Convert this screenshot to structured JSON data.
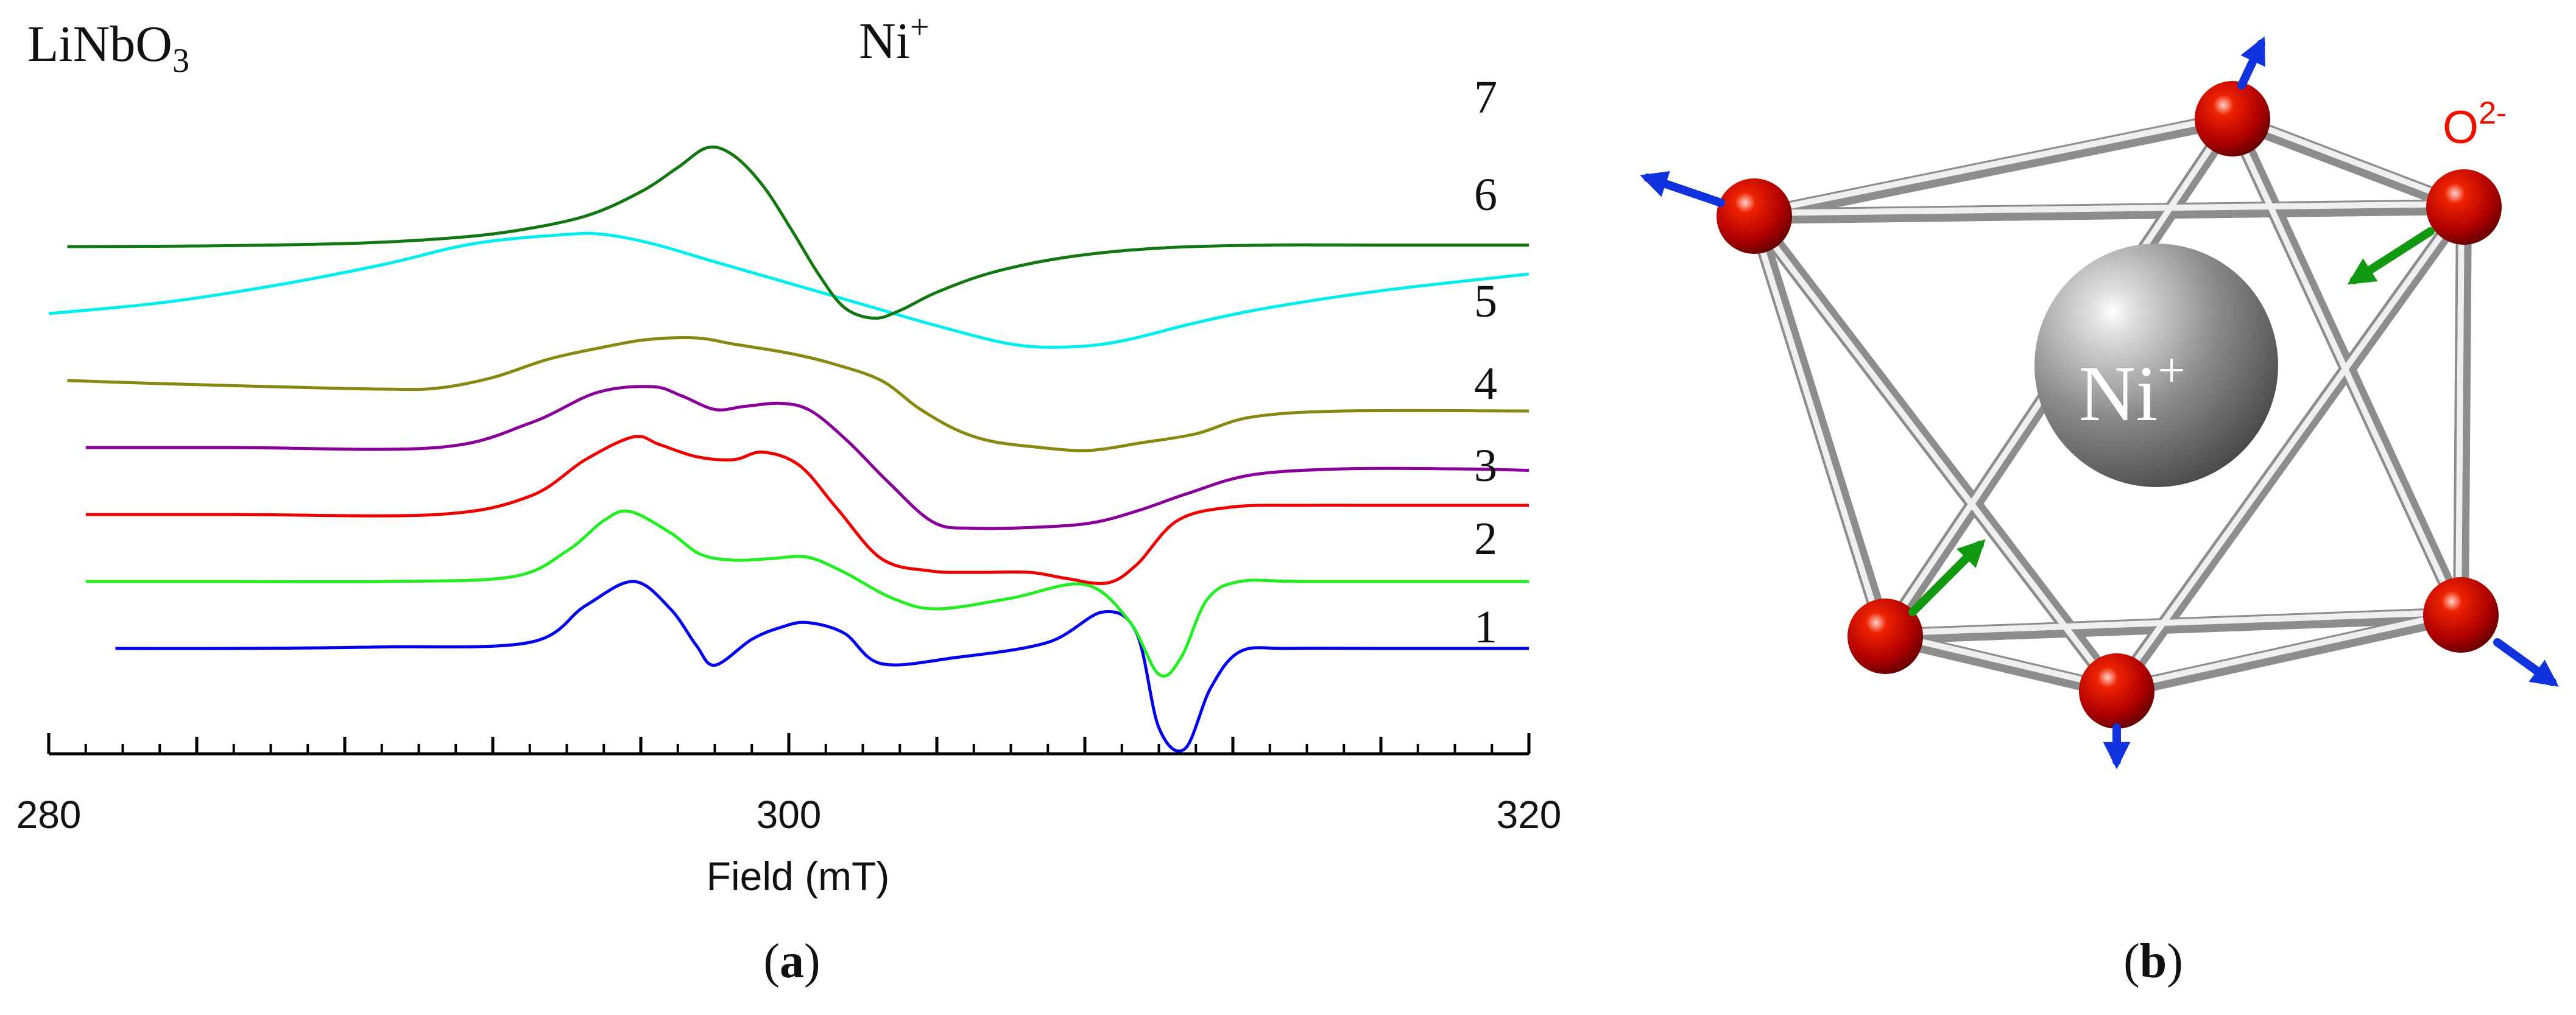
{
  "panel_a": {
    "material": "LiNbO",
    "material_sub": "3",
    "ion": "Ni",
    "ion_sup": "+",
    "caption_open": "(",
    "caption_letter": "a",
    "caption_close": ")"
  },
  "panel_b": {
    "center_ion": "Ni",
    "center_ion_sup": "+",
    "ligand": "O",
    "ligand_sup": "2-",
    "caption_open": "(",
    "caption_letter": "b",
    "caption_close": ")"
  },
  "chart_data": {
    "type": "line",
    "title": "",
    "xlabel": "Field (mT)",
    "ylabel": "",
    "xlim": [
      280,
      320
    ],
    "xticks": [
      280,
      300,
      320
    ],
    "xtick_labels": [
      "280",
      "300",
      "320"
    ],
    "minor_tick_step": 1,
    "medium_tick_step": 4,
    "grid": false,
    "legend": "none",
    "series": [
      {
        "name": "1",
        "color": "#0000ee",
        "offset": 0,
        "x": [
          281.8,
          285,
          289,
          293,
          294.5,
          295.8,
          296.8,
          297.5,
          298.0,
          299.0,
          299.8,
          300.5,
          301.5,
          302.5,
          304.5,
          307,
          308.5,
          309.4,
          310.0,
          310.7,
          311.4,
          312.2,
          313.5,
          316,
          320
        ],
        "y": [
          0.0,
          0.0,
          0.05,
          0.2,
          1.4,
          2.2,
          1.3,
          0.1,
          -0.55,
          0.3,
          0.7,
          0.85,
          0.5,
          -0.5,
          -0.3,
          0.2,
          1.2,
          0.5,
          -2.6,
          -3.3,
          -1.3,
          -0.1,
          0.0,
          0.0,
          0.0
        ]
      },
      {
        "name": "2",
        "color": "#22ee22",
        "offset": 2.2,
        "x": [
          281,
          285,
          289,
          292.5,
          294,
          295,
          295.7,
          296.8,
          297.6,
          298.5,
          299.5,
          300.5,
          301.5,
          302.8,
          304,
          306,
          308,
          309.2,
          310.0,
          310.6,
          311.3,
          312.2,
          314,
          320
        ],
        "y": [
          0.0,
          0.0,
          0.0,
          0.15,
          1.0,
          2.0,
          2.3,
          1.6,
          0.9,
          0.7,
          0.75,
          0.8,
          0.3,
          -0.55,
          -0.9,
          -0.55,
          -0.1,
          -1.3,
          -3.05,
          -2.5,
          -0.6,
          0.0,
          0.0,
          0.0
        ]
      },
      {
        "name": "3",
        "color": "#ee0000",
        "offset": 4.4,
        "x": [
          281,
          285,
          290.5,
          293,
          294.5,
          295.8,
          296.5,
          297.5,
          298.5,
          299.3,
          300.3,
          301.3,
          302.5,
          303.8,
          305,
          306.5,
          307.5,
          308.6,
          309.4,
          310.5,
          312,
          314,
          316,
          320
        ],
        "y": [
          0.0,
          0.0,
          0.0,
          0.6,
          1.8,
          2.55,
          2.3,
          1.9,
          1.8,
          2.05,
          1.6,
          0.2,
          -1.45,
          -1.85,
          -1.9,
          -1.9,
          -2.1,
          -2.25,
          -1.65,
          -0.2,
          0.25,
          0.3,
          0.3,
          0.3
        ]
      },
      {
        "name": "4",
        "color": "#880099",
        "offset": 6.6,
        "x": [
          281,
          285,
          290.5,
          293,
          294.8,
          296.3,
          297.1,
          298.0,
          298.8,
          299.8,
          300.6,
          301.6,
          302.7,
          303.9,
          305,
          307,
          308.3,
          309.5,
          310.8,
          312.5,
          315,
          318,
          320
        ],
        "y": [
          0.0,
          0.0,
          0.0,
          0.8,
          1.8,
          2.0,
          1.7,
          1.25,
          1.35,
          1.45,
          1.2,
          0.2,
          -1.15,
          -2.45,
          -2.65,
          -2.6,
          -2.45,
          -2.05,
          -1.5,
          -0.9,
          -0.7,
          -0.7,
          -0.75
        ]
      },
      {
        "name": "5",
        "color": "#888811",
        "offset": 8.8,
        "x": [
          280.5,
          283,
          286,
          289,
          290.5,
          292,
          293.5,
          295,
          296.2,
          297.5,
          298.5,
          300,
          301.2,
          302.5,
          303.5,
          304.5,
          305.5,
          306.8,
          307.8,
          308.5,
          309.5,
          311,
          312.5,
          315,
          320
        ],
        "y": [
          0.0,
          -0.1,
          -0.2,
          -0.28,
          -0.25,
          0.1,
          0.7,
          1.1,
          1.35,
          1.4,
          1.2,
          0.9,
          0.55,
          0.0,
          -0.9,
          -1.6,
          -2.0,
          -2.2,
          -2.3,
          -2.25,
          -2.05,
          -1.75,
          -1.2,
          -1.0,
          -1.0
        ]
      },
      {
        "name": "6",
        "color": "#00eeee",
        "offset": 11.0,
        "x": [
          280,
          283,
          286,
          289,
          291.5,
          294,
          295,
          296.3,
          298,
          300,
          302,
          304,
          306,
          307.5,
          309,
          311,
          313,
          316,
          320
        ],
        "y": [
          0.0,
          0.35,
          0.9,
          1.6,
          2.3,
          2.6,
          2.6,
          2.3,
          1.7,
          1.0,
          0.3,
          -0.4,
          -1.0,
          -1.1,
          -0.9,
          -0.3,
          0.2,
          0.75,
          1.3
        ]
      },
      {
        "name": "7",
        "color": "#117711",
        "offset": 13.2,
        "x": [
          280.5,
          284,
          288,
          290.5,
          292.5,
          294.5,
          296,
          297,
          297.8,
          298.5,
          299.3,
          300.1,
          300.8,
          301.5,
          302.3,
          303,
          304,
          305.5,
          307.5,
          310,
          313,
          316,
          320
        ],
        "y": [
          0.0,
          0.02,
          0.1,
          0.25,
          0.5,
          1.0,
          1.8,
          2.6,
          3.25,
          3.0,
          2.0,
          0.5,
          -0.9,
          -2.0,
          -2.35,
          -2.1,
          -1.5,
          -0.85,
          -0.35,
          -0.05,
          0.05,
          0.05,
          0.05
        ]
      }
    ]
  },
  "colors": {
    "ligand_label": "#ee1100",
    "oxygen": "#cc0000",
    "displacement_out": "#1133dd",
    "displacement_in": "#119911",
    "bond": "#c9c9c9",
    "nickel": "#7a7a7a",
    "text": "#111111"
  }
}
